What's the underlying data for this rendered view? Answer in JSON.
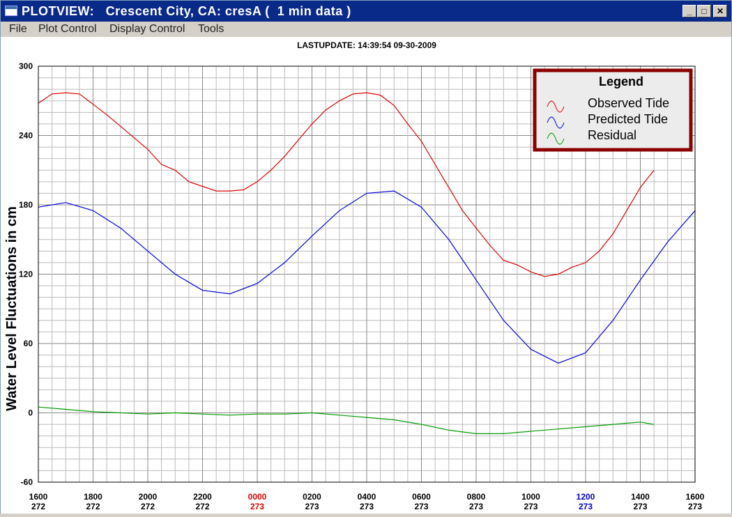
{
  "window": {
    "title": "PLOTVIEW:   Crescent City, CA: cresA (  1 min data )",
    "minimize_glyph": "_",
    "maximize_glyph": "□",
    "close_glyph": "✕"
  },
  "menu": {
    "items": [
      "File",
      "Plot Control",
      "Display Control",
      "Tools"
    ]
  },
  "colors": {
    "observed": "#dd0000",
    "predicted": "#0000dd",
    "residual": "#009900",
    "legend_border": "#8b0000",
    "tick_day_273_highlight_0000": "#dd0000",
    "tick_day_273_highlight_1200": "#0000cc"
  },
  "chart_data": {
    "type": "line",
    "lastupdate": "LASTUPDATE: 14:39:54  09-30-2009",
    "ylabel": "Water Level Fluctuations in cm",
    "ylim": [
      -60,
      300
    ],
    "yticks": [
      "300",
      "240",
      "180",
      "120",
      "60",
      "0",
      "-60"
    ],
    "xlim_hours": [
      0,
      24
    ],
    "xticks": [
      {
        "time": "1600",
        "day": "272"
      },
      {
        "time": "1800",
        "day": "272"
      },
      {
        "time": "2000",
        "day": "272"
      },
      {
        "time": "2200",
        "day": "272"
      },
      {
        "time": "0000",
        "day": "273"
      },
      {
        "time": "0200",
        "day": "273"
      },
      {
        "time": "0400",
        "day": "273"
      },
      {
        "time": "0600",
        "day": "273"
      },
      {
        "time": "0800",
        "day": "273"
      },
      {
        "time": "1000",
        "day": "273"
      },
      {
        "time": "1200",
        "day": "273"
      },
      {
        "time": "1400",
        "day": "273"
      },
      {
        "time": "1600",
        "day": "273"
      }
    ],
    "grid": true,
    "legend": {
      "title": "Legend",
      "placement": "top-right",
      "entries": [
        "Observed Tide",
        "Predicted Tide",
        "Residual"
      ]
    },
    "series": [
      {
        "name": "Observed Tide",
        "x_hours_from_1600_day272": [
          0,
          0.5,
          1,
          1.5,
          2,
          2.5,
          3,
          3.5,
          4,
          4.5,
          5,
          5.5,
          6,
          6.5,
          7,
          7.5,
          8,
          8.5,
          9,
          9.5,
          10,
          10.5,
          11,
          11.5,
          12,
          12.5,
          13,
          13.5,
          14,
          14.5,
          15,
          15.5,
          16,
          16.5,
          17,
          17.5,
          18,
          18.5,
          19,
          19.5,
          20,
          20.5,
          21,
          21.5,
          22,
          22.5
        ],
        "y": [
          268,
          276,
          277,
          276,
          267,
          258,
          248,
          238,
          228,
          215,
          210,
          200,
          196,
          192,
          192,
          193,
          200,
          210,
          222,
          236,
          250,
          262,
          270,
          276,
          277,
          275,
          266,
          250,
          235,
          215,
          195,
          175,
          160,
          145,
          132,
          128,
          122,
          118,
          120,
          126,
          130,
          140,
          155,
          175,
          195,
          210
        ]
      },
      {
        "name": "Predicted Tide",
        "x_hours_from_1600_day272": [
          0,
          1,
          2,
          3,
          4,
          5,
          6,
          7,
          8,
          9,
          10,
          11,
          12,
          13,
          14,
          15,
          16,
          17,
          18,
          19,
          20,
          21,
          22,
          23,
          24
        ],
        "y": [
          178,
          182,
          175,
          160,
          140,
          120,
          106,
          103,
          112,
          130,
          153,
          175,
          190,
          192,
          178,
          150,
          115,
          80,
          55,
          43,
          52,
          80,
          115,
          148,
          175
        ]
      },
      {
        "name": "Residual",
        "x_hours_from_1600_day272": [
          0,
          1,
          2,
          3,
          4,
          5,
          6,
          7,
          8,
          9,
          10,
          11,
          12,
          13,
          14,
          15,
          16,
          17,
          18,
          19,
          20,
          21,
          22,
          22.5
        ],
        "y": [
          5,
          3,
          1,
          0,
          -1,
          0,
          -1,
          -2,
          -1,
          -1,
          0,
          -2,
          -4,
          -6,
          -10,
          -15,
          -18,
          -18,
          -16,
          -14,
          -12,
          -10,
          -8,
          -10
        ]
      }
    ]
  }
}
